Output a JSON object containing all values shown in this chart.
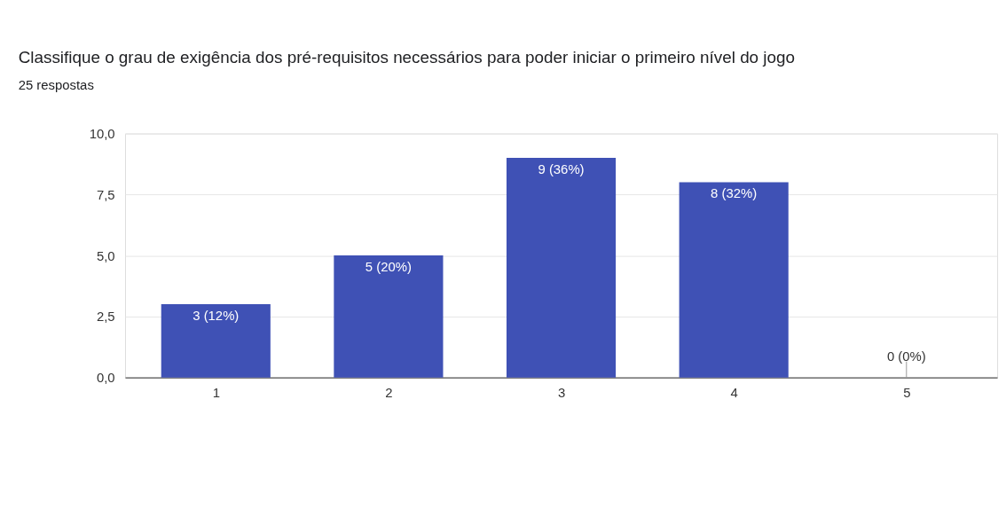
{
  "chart_data": {
    "type": "bar",
    "title": "Classifique o grau de exigência dos pré-requisitos necessários para poder iniciar o primeiro nível do jogo",
    "subtitle": "25 respostas",
    "categories": [
      "1",
      "2",
      "3",
      "4",
      "5"
    ],
    "values": [
      3,
      5,
      9,
      8,
      0
    ],
    "value_labels": [
      "3 (12%)",
      "5 (20%)",
      "9 (36%)",
      "8 (32%)",
      "0 (0%)"
    ],
    "color": "#3f51b5",
    "ylim": [
      0,
      10
    ],
    "yticks": [
      {
        "value": 0,
        "label": "0,0"
      },
      {
        "value": 2.5,
        "label": "2,5"
      },
      {
        "value": 5,
        "label": "5,0"
      },
      {
        "value": 7.5,
        "label": "7,5"
      },
      {
        "value": 10,
        "label": "10,0"
      }
    ],
    "grid": "y"
  }
}
